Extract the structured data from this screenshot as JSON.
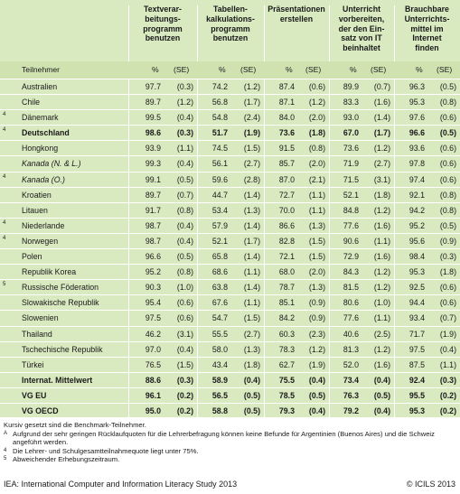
{
  "columns": [
    {
      "header": "Textverar-\nbeitungs-\nprogramm\nbenutzen"
    },
    {
      "header": "Tabellen-\nkalkulations-\nprogramm\nbenutzen"
    },
    {
      "header": "Präsentationen erstellen"
    },
    {
      "header": "Unterricht\nvorbereiten,\nder den Ein-\nsatz von IT\nbeinhaltet"
    },
    {
      "header": "Brauchbare\nUnterrichts-\nmittel im\nInternet\nfinden"
    }
  ],
  "subheader": {
    "participant": "Teilnehmer",
    "pct": "%",
    "se": "(SE)"
  },
  "rows": [
    {
      "fn": "",
      "name": "Australien",
      "style": "",
      "v": [
        "97.7",
        "(0.3)",
        "74.2",
        "(1.2)",
        "87.4",
        "(0.6)",
        "89.9",
        "(0.7)",
        "96.3",
        "(0.5)"
      ]
    },
    {
      "fn": "",
      "name": "Chile",
      "style": "",
      "v": [
        "89.7",
        "(1.2)",
        "56.8",
        "(1.7)",
        "87.1",
        "(1.2)",
        "83.3",
        "(1.6)",
        "95.3",
        "(0.8)"
      ]
    },
    {
      "fn": "4",
      "name": "Dänemark",
      "style": "",
      "v": [
        "99.5",
        "(0.4)",
        "54.8",
        "(2.4)",
        "84.0",
        "(2.0)",
        "93.0",
        "(1.4)",
        "97.6",
        "(0.6)"
      ]
    },
    {
      "fn": "4",
      "name": "Deutschland",
      "style": "bold",
      "v": [
        "98.6",
        "(0.3)",
        "51.7",
        "(1.9)",
        "73.6",
        "(1.8)",
        "67.0",
        "(1.7)",
        "96.6",
        "(0.5)"
      ]
    },
    {
      "fn": "",
      "name": "Hongkong",
      "style": "",
      "v": [
        "93.9",
        "(1.1)",
        "74.5",
        "(1.5)",
        "91.5",
        "(0.8)",
        "73.6",
        "(1.2)",
        "93.6",
        "(0.6)"
      ]
    },
    {
      "fn": "",
      "name": "Kanada (N. & L.)",
      "style": "ital",
      "v": [
        "99.3",
        "(0.4)",
        "56.1",
        "(2.7)",
        "85.7",
        "(2.0)",
        "71.9",
        "(2.7)",
        "97.8",
        "(0.6)"
      ]
    },
    {
      "fn": "4",
      "name": "Kanada (O.)",
      "style": "ital",
      "v": [
        "99.1",
        "(0.5)",
        "59.6",
        "(2.8)",
        "87.0",
        "(2.1)",
        "71.5",
        "(3.1)",
        "97.4",
        "(0.6)"
      ]
    },
    {
      "fn": "",
      "name": "Kroatien",
      "style": "",
      "v": [
        "89.7",
        "(0.7)",
        "44.7",
        "(1.4)",
        "72.7",
        "(1.1)",
        "52.1",
        "(1.8)",
        "92.1",
        "(0.8)"
      ]
    },
    {
      "fn": "",
      "name": "Litauen",
      "style": "",
      "v": [
        "91.7",
        "(0.8)",
        "53.4",
        "(1.3)",
        "70.0",
        "(1.1)",
        "84.8",
        "(1.2)",
        "94.2",
        "(0.8)"
      ]
    },
    {
      "fn": "4",
      "name": "Niederlande",
      "style": "",
      "v": [
        "98.7",
        "(0.4)",
        "57.9",
        "(1.4)",
        "86.6",
        "(1.3)",
        "77.6",
        "(1.6)",
        "95.2",
        "(0.5)"
      ]
    },
    {
      "fn": "4",
      "name": "Norwegen",
      "style": "",
      "v": [
        "98.7",
        "(0.4)",
        "52.1",
        "(1.7)",
        "82.8",
        "(1.5)",
        "90.6",
        "(1.1)",
        "95.6",
        "(0.9)"
      ]
    },
    {
      "fn": "",
      "name": "Polen",
      "style": "",
      "v": [
        "96.6",
        "(0.5)",
        "65.8",
        "(1.4)",
        "72.1",
        "(1.5)",
        "72.9",
        "(1.6)",
        "98.4",
        "(0.3)"
      ]
    },
    {
      "fn": "",
      "name": "Republik Korea",
      "style": "",
      "v": [
        "95.2",
        "(0.8)",
        "68.6",
        "(1.1)",
        "68.0",
        "(2.0)",
        "84.3",
        "(1.2)",
        "95.3",
        "(1.8)"
      ]
    },
    {
      "fn": "5",
      "name": "Russische Föderation",
      "style": "",
      "v": [
        "90.3",
        "(1.0)",
        "63.8",
        "(1.4)",
        "78.7",
        "(1.3)",
        "81.5",
        "(1.2)",
        "92.5",
        "(0.6)"
      ]
    },
    {
      "fn": "",
      "name": "Slowakische Republik",
      "style": "",
      "v": [
        "95.4",
        "(0.6)",
        "67.6",
        "(1.1)",
        "85.1",
        "(0.9)",
        "80.6",
        "(1.0)",
        "94.4",
        "(0.6)"
      ]
    },
    {
      "fn": "",
      "name": "Slowenien",
      "style": "",
      "v": [
        "97.5",
        "(0.6)",
        "54.7",
        "(1.5)",
        "84.2",
        "(0.9)",
        "77.6",
        "(1.1)",
        "93.4",
        "(0.7)"
      ]
    },
    {
      "fn": "",
      "name": "Thailand",
      "style": "",
      "v": [
        "46.2",
        "(3.1)",
        "55.5",
        "(2.7)",
        "60.3",
        "(2.3)",
        "40.6",
        "(2.5)",
        "71.7",
        "(1.9)"
      ]
    },
    {
      "fn": "",
      "name": "Tschechische Republik",
      "style": "",
      "v": [
        "97.0",
        "(0.4)",
        "58.0",
        "(1.3)",
        "78.3",
        "(1.2)",
        "81.3",
        "(1.2)",
        "97.5",
        "(0.4)"
      ]
    },
    {
      "fn": "",
      "name": "Türkei",
      "style": "",
      "v": [
        "76.5",
        "(1.5)",
        "43.4",
        "(1.8)",
        "62.7",
        "(1.9)",
        "52.0",
        "(1.6)",
        "87.5",
        "(1.1)"
      ]
    },
    {
      "fn": "",
      "name": "Internat. Mittelwert",
      "style": "bold",
      "v": [
        "88.6",
        "(0.3)",
        "58.9",
        "(0.4)",
        "75.5",
        "(0.4)",
        "73.4",
        "(0.4)",
        "92.4",
        "(0.3)"
      ]
    },
    {
      "fn": "",
      "name": "VG EU",
      "style": "bold",
      "v": [
        "96.1",
        "(0.2)",
        "56.5",
        "(0.5)",
        "78.5",
        "(0.5)",
        "76.3",
        "(0.5)",
        "95.5",
        "(0.2)"
      ]
    },
    {
      "fn": "",
      "name": "VG OECD",
      "style": "bold",
      "v": [
        "95.0",
        "(0.2)",
        "58.8",
        "(0.5)",
        "79.3",
        "(0.4)",
        "79.2",
        "(0.4)",
        "95.3",
        "(0.2)"
      ]
    }
  ],
  "notes": [
    {
      "mark": "",
      "text": "Kursiv gesetzt sind die Benchmark-Teilnehmer."
    },
    {
      "mark": "A",
      "text": "Aufgrund der sehr geringen Rücklaufquoten für die Lehrerbefragung können keine Befunde für Argentinien (Buenos Aires) und die Schweiz angeführt werden."
    },
    {
      "mark": "4",
      "text": "Die Lehrer- und Schulgesamtteilnahmequote liegt unter 75%."
    },
    {
      "mark": "5",
      "text": "Abweichender Erhebungszeitraum."
    }
  ],
  "footer": {
    "left": "IEA: International Computer and Information Literacy Study 2013",
    "right": "© ICILS 2013"
  }
}
